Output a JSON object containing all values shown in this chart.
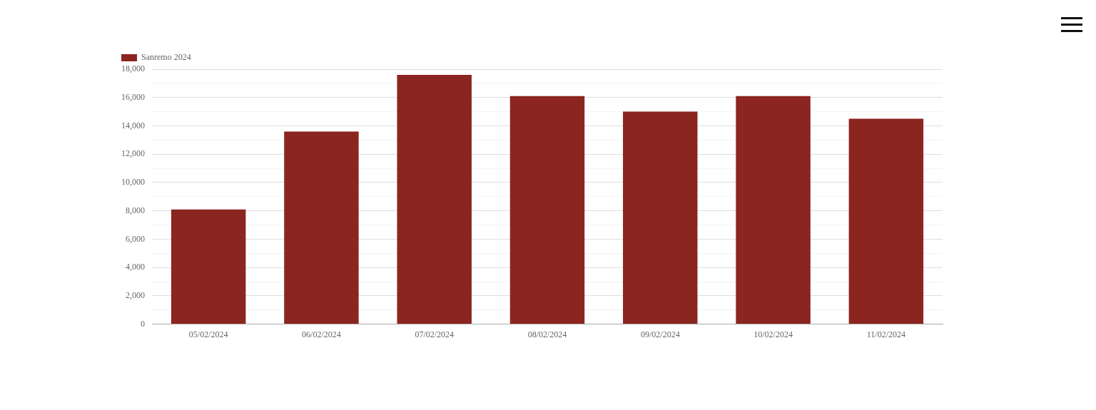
{
  "chart_data": {
    "type": "bar",
    "categories": [
      "05/02/2024",
      "06/02/2024",
      "07/02/2024",
      "08/02/2024",
      "09/02/2024",
      "10/02/2024",
      "11/02/2024"
    ],
    "series": [
      {
        "name": "Sanremo 2024",
        "color": "#8b2520",
        "values": [
          8100,
          13600,
          17600,
          16100,
          15000,
          16100,
          14500
        ]
      }
    ],
    "ylim": [
      0,
      18000
    ],
    "yticks": [
      0,
      {
        "value": 1000,
        "label": null
      },
      "2,000",
      {
        "value": 3000,
        "label": null
      },
      {
        "value": 4000,
        "label": "4,000"
      },
      {
        "value": 5000,
        "label": null
      },
      {
        "value": 6000,
        "label": "6,000"
      },
      {
        "value": 7000,
        "label": null
      },
      {
        "value": 8000,
        "label": "8,000"
      },
      {
        "value": 9000,
        "label": null
      },
      {
        "value": 10000,
        "label": "10,000"
      },
      {
        "value": 11000,
        "label": null
      },
      {
        "value": 12000,
        "label": "12,000"
      },
      {
        "value": 13000,
        "label": null
      },
      {
        "value": 14000,
        "label": "14,000"
      },
      {
        "value": 15000,
        "label": null
      },
      {
        "value": 16000,
        "label": "16,000"
      },
      {
        "value": 17000,
        "label": null
      },
      {
        "value": 18000,
        "label": "18,000"
      }
    ],
    "grid": "y",
    "legend": "top left"
  }
}
